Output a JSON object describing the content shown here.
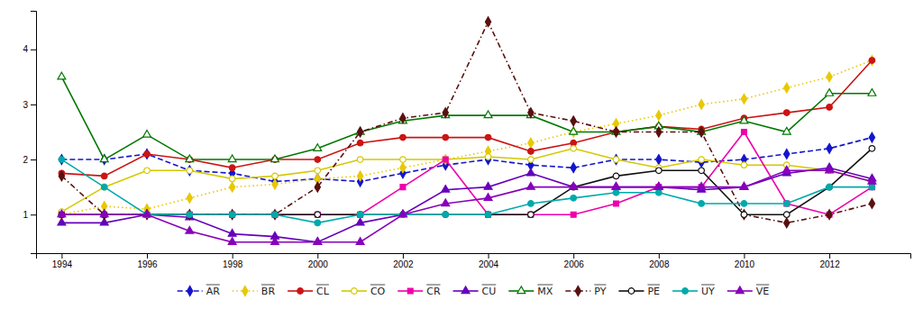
{
  "chart_data": {
    "type": "line",
    "x": [
      1994,
      1995,
      1996,
      1997,
      1998,
      1999,
      2000,
      2001,
      2002,
      2003,
      2004,
      2005,
      2006,
      2007,
      2008,
      2009,
      2010,
      2011,
      2012,
      2013
    ],
    "series": [
      {
        "name": "AR",
        "color": "#1414CC",
        "line_style": "dashed",
        "marker": "diamond",
        "values": [
          2.0,
          2.0,
          2.1,
          1.8,
          1.75,
          1.6,
          1.65,
          1.6,
          1.75,
          1.9,
          2.0,
          1.9,
          1.85,
          2.0,
          2.0,
          1.95,
          2.0,
          2.1,
          2.2,
          2.4
        ]
      },
      {
        "name": "BR",
        "color": "#E8C800",
        "line_style": "dotted",
        "marker": "diamond",
        "values": [
          1.0,
          1.15,
          1.1,
          1.3,
          1.5,
          1.55,
          1.65,
          1.7,
          1.85,
          2.0,
          2.15,
          2.3,
          2.5,
          2.65,
          2.8,
          3.0,
          3.1,
          3.3,
          3.5,
          3.8
        ]
      },
      {
        "name": "CL",
        "color": "#CC1414",
        "line_style": "solid",
        "marker": "circle",
        "values": [
          1.75,
          1.7,
          2.1,
          2.0,
          1.85,
          2.0,
          2.0,
          2.3,
          2.4,
          2.4,
          2.4,
          2.15,
          2.3,
          2.5,
          2.6,
          2.55,
          2.75,
          2.85,
          2.95,
          3.8
        ]
      },
      {
        "name": "CO",
        "color": "#D4C800",
        "line_style": "solid",
        "marker": "circle-open",
        "values": [
          1.05,
          1.5,
          1.8,
          1.8,
          1.65,
          1.7,
          1.8,
          2.0,
          2.0,
          2.0,
          2.05,
          2.0,
          2.2,
          2.0,
          1.85,
          2.0,
          1.9,
          1.9,
          1.8,
          1.6
        ]
      },
      {
        "name": "CR",
        "color": "#EE00AA",
        "line_style": "solid",
        "marker": "square",
        "values": [
          1.0,
          1.0,
          1.0,
          1.0,
          1.0,
          1.0,
          1.0,
          1.0,
          1.5,
          2.0,
          1.0,
          1.0,
          1.0,
          1.2,
          1.5,
          1.5,
          2.5,
          1.2,
          1.0,
          1.5
        ]
      },
      {
        "name": "CU",
        "color": "#6600BB",
        "line_style": "solid",
        "marker": "triangle",
        "values": [
          0.85,
          0.85,
          1.0,
          0.95,
          0.65,
          0.6,
          0.5,
          0.85,
          1.0,
          1.45,
          1.5,
          1.75,
          1.5,
          1.5,
          1.5,
          1.45,
          1.5,
          1.75,
          1.85,
          1.65
        ]
      },
      {
        "name": "MX",
        "color": "#007700",
        "line_style": "solid",
        "marker": "triangle-open",
        "values": [
          3.5,
          2.0,
          2.45,
          2.0,
          2.0,
          2.0,
          2.2,
          2.5,
          2.7,
          2.8,
          2.8,
          2.8,
          2.5,
          2.5,
          2.6,
          2.5,
          2.7,
          2.5,
          3.2,
          3.2
        ]
      },
      {
        "name": "PY",
        "color": "#5A1010",
        "line_style": "dashdot",
        "marker": "diamond",
        "values": [
          1.7,
          1.0,
          1.0,
          1.0,
          1.0,
          1.0,
          1.5,
          2.5,
          2.75,
          2.85,
          4.5,
          2.85,
          2.7,
          2.5,
          2.5,
          2.5,
          1.0,
          0.85,
          1.0,
          1.2
        ]
      },
      {
        "name": "PE",
        "color": "#111111",
        "line_style": "solid",
        "marker": "circle-open",
        "values": [
          1.0,
          1.0,
          1.0,
          1.0,
          1.0,
          1.0,
          1.0,
          1.0,
          1.0,
          1.0,
          1.0,
          1.0,
          1.5,
          1.7,
          1.8,
          1.8,
          1.0,
          1.0,
          1.5,
          2.2
        ]
      },
      {
        "name": "UY",
        "color": "#00AAAA",
        "line_style": "solid",
        "marker": "circle",
        "values": [
          2.0,
          1.5,
          1.0,
          1.0,
          1.0,
          1.0,
          0.85,
          1.0,
          1.0,
          1.0,
          1.0,
          1.2,
          1.3,
          1.4,
          1.4,
          1.2,
          1.2,
          1.2,
          1.5,
          1.5
        ]
      },
      {
        "name": "VE",
        "color": "#8800BB",
        "line_style": "solid",
        "marker": "triangle",
        "values": [
          1.0,
          1.0,
          1.0,
          0.7,
          0.5,
          0.5,
          0.5,
          0.5,
          1.0,
          1.2,
          1.3,
          1.5,
          1.5,
          1.5,
          1.5,
          1.5,
          1.5,
          1.8,
          1.8,
          1.6
        ]
      }
    ],
    "xlim": [
      1993.4,
      2013.9
    ],
    "xticks": [
      1994,
      1996,
      1998,
      2000,
      2002,
      2004,
      2006,
      2008,
      2010,
      2012
    ],
    "ylim": [
      0.3,
      4.7
    ],
    "yticks": [
      1,
      2,
      3,
      4
    ],
    "grid": false,
    "legend": "bottom"
  }
}
